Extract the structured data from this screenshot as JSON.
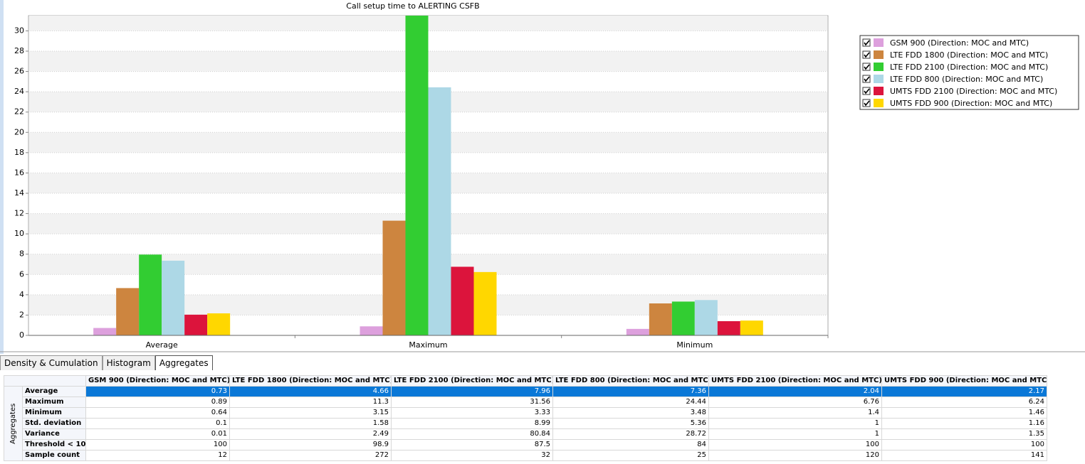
{
  "chart_data": {
    "type": "bar",
    "title": "Call setup time to ALERTING CSFB",
    "categories": [
      "Average",
      "Maximum",
      "Minimum"
    ],
    "series": [
      {
        "name": "GSM 900 (Direction: MOC and MTC)",
        "color": "#dda0dd",
        "values": [
          0.73,
          0.89,
          0.64
        ]
      },
      {
        "name": "LTE FDD 1800 (Direction: MOC and MTC)",
        "color": "#cd853f",
        "values": [
          4.66,
          11.3,
          3.15
        ]
      },
      {
        "name": "LTE FDD 2100 (Direction: MOC and MTC)",
        "color": "#32cd32",
        "values": [
          7.96,
          31.56,
          3.33
        ]
      },
      {
        "name": "LTE FDD 800 (Direction: MOC and MTC)",
        "color": "#add8e6",
        "values": [
          7.36,
          24.44,
          3.48
        ]
      },
      {
        "name": "UMTS FDD 2100 (Direction: MOC and MTC)",
        "color": "#dc143c",
        "values": [
          2.04,
          6.76,
          1.4
        ]
      },
      {
        "name": "UMTS FDD 900 (Direction: MOC and MTC)",
        "color": "#ffd700",
        "values": [
          2.17,
          6.24,
          1.46
        ]
      }
    ],
    "ylim": [
      0,
      31.5
    ],
    "yticks": [
      0,
      2,
      4,
      6,
      8,
      10,
      12,
      14,
      16,
      18,
      20,
      22,
      24,
      26,
      28,
      30
    ],
    "grid": true,
    "legend": "right"
  },
  "tabs": [
    "Density & Cumulation",
    "Histogram",
    "Aggregates"
  ],
  "active_tab": 2,
  "table": {
    "group_label": "Aggregates",
    "columns": [
      "GSM 900 (Direction: MOC and MTC)",
      "LTE FDD 1800 (Direction: MOC and MTC)",
      "LTE FDD 2100 (Direction: MOC and MTC)",
      "LTE FDD 800 (Direction: MOC and MTC)",
      "UMTS FDD 2100 (Direction: MOC and MTC)",
      "UMTS FDD 900 (Direction: MOC and MTC)"
    ],
    "selected_row": 0,
    "rows": [
      {
        "label": "Average",
        "values": [
          0.73,
          4.66,
          7.96,
          7.36,
          2.04,
          2.17
        ]
      },
      {
        "label": "Maximum",
        "values": [
          0.89,
          11.3,
          31.56,
          24.44,
          6.76,
          6.24
        ]
      },
      {
        "label": "Minimum",
        "values": [
          0.64,
          3.15,
          3.33,
          3.48,
          1.4,
          1.46
        ]
      },
      {
        "label": "Std. deviation",
        "values": [
          0.1,
          1.58,
          8.99,
          5.36,
          1,
          1.16
        ]
      },
      {
        "label": "Variance",
        "values": [
          0.01,
          2.49,
          80.84,
          28.72,
          1,
          1.35
        ]
      },
      {
        "label": "Threshold < 10",
        "values": [
          100,
          98.9,
          87.5,
          84,
          100,
          100
        ]
      },
      {
        "label": "Sample count",
        "values": [
          12,
          272,
          32,
          25,
          120,
          141
        ]
      }
    ]
  }
}
